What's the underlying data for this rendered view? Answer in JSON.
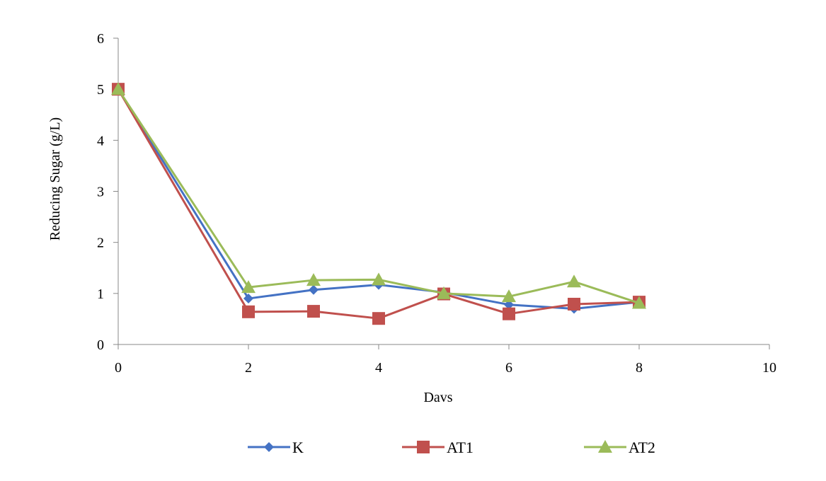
{
  "chart_data": {
    "type": "line",
    "xlabel": "Davs",
    "ylabel": "Reducing Sugar (g/L)",
    "xlim": [
      0,
      10
    ],
    "ylim": [
      0,
      6
    ],
    "x_ticks": [
      "0",
      "2",
      "4",
      "6",
      "8",
      "10"
    ],
    "y_ticks": [
      "0",
      "1",
      "2",
      "3",
      "4",
      "5",
      "6"
    ],
    "grid": false,
    "legend_position": "bottom",
    "x": [
      0,
      2,
      3,
      4,
      5,
      6,
      7,
      8
    ],
    "series": [
      {
        "name": "K",
        "marker": "diamond",
        "color": "#4472C4",
        "values": [
          5.0,
          0.9,
          1.07,
          1.17,
          1.02,
          0.78,
          0.7,
          0.83
        ]
      },
      {
        "name": "AT1",
        "marker": "square",
        "color": "#C0504D",
        "values": [
          5.0,
          0.64,
          0.65,
          0.51,
          0.99,
          0.6,
          0.79,
          0.83
        ]
      },
      {
        "name": "AT2",
        "marker": "triangle",
        "color": "#9BBB59",
        "values": [
          5.0,
          1.12,
          1.26,
          1.27,
          1.0,
          0.94,
          1.23,
          0.81
        ]
      }
    ]
  }
}
